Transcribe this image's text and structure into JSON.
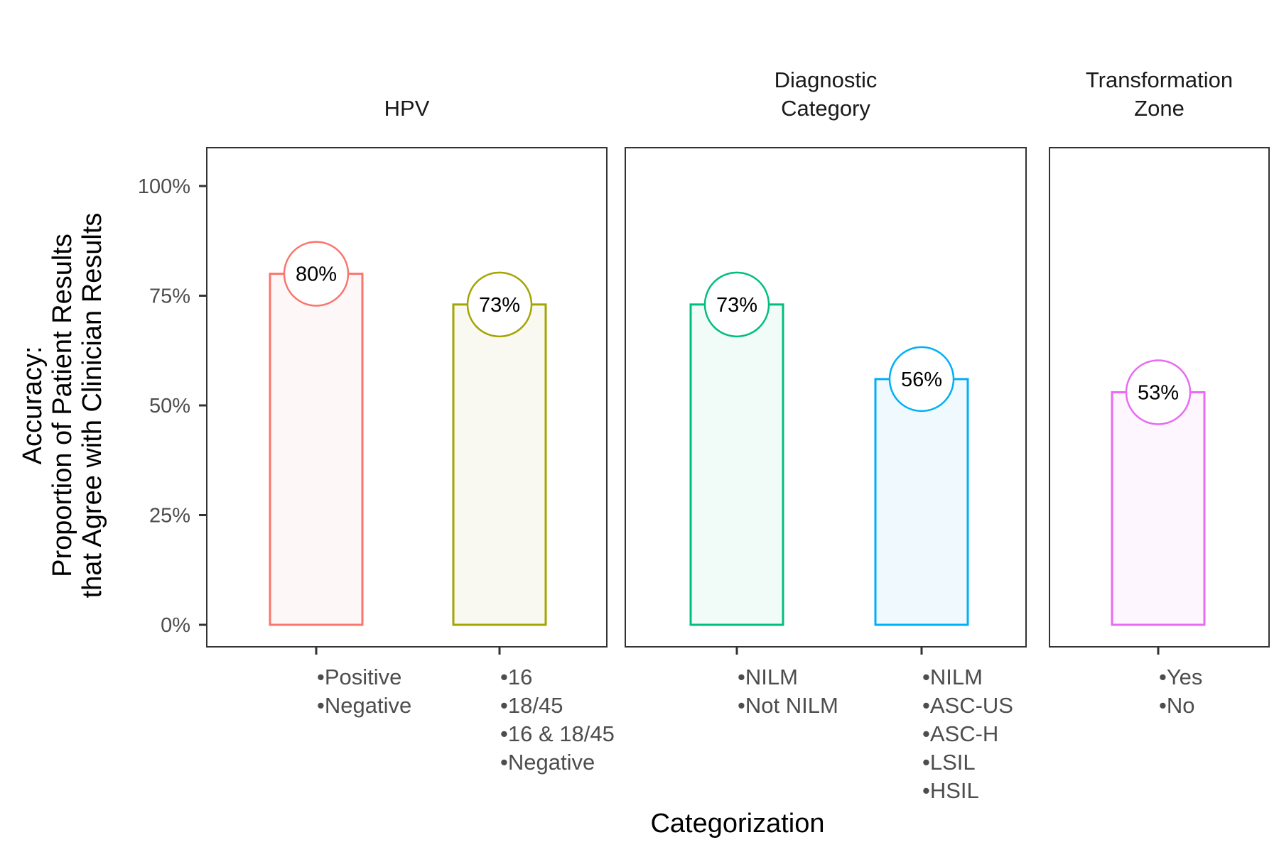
{
  "chart_data": {
    "type": "bar",
    "title": "",
    "xlabel": "Categorization",
    "ylabel_lines": [
      "Accuracy:",
      "Proportion of Patient Results",
      "that Agree with Clinician Results"
    ],
    "ylim": [
      0,
      1.08
    ],
    "yticks": [
      0,
      0.25,
      0.5,
      0.75,
      1.0
    ],
    "ytick_labels": [
      "0%",
      "25%",
      "50%",
      "75%",
      "100%"
    ],
    "grid": false,
    "legend": "none",
    "facets": [
      {
        "name": "HPV",
        "label_lines": [
          "HPV"
        ],
        "bars": [
          {
            "category_lines": [
              "•Positive",
              "•Negative"
            ],
            "value": 0.8,
            "label": "80%",
            "color": "#F8766D",
            "fill": "#FEF7F7"
          },
          {
            "category_lines": [
              "•16",
              "•18/45",
              "•16 & 18/45",
              "•Negative"
            ],
            "value": 0.73,
            "label": "73%",
            "color": "#A3A500",
            "fill": "#F9F9F1"
          }
        ]
      },
      {
        "name": "Diagnostic Category",
        "label_lines": [
          "Diagnostic",
          "Category"
        ],
        "bars": [
          {
            "category_lines": [
              "•NILM",
              "•Not NILM"
            ],
            "value": 0.73,
            "label": "73%",
            "color": "#00BF7D",
            "fill": "#F1FBF7"
          },
          {
            "category_lines": [
              "•NILM",
              "•ASC-US",
              "•ASC-H",
              "•LSIL",
              "•HSIL"
            ],
            "value": 0.56,
            "label": "56%",
            "color": "#00B0F6",
            "fill": "#F0F9FE"
          }
        ]
      },
      {
        "name": "Transformation Zone",
        "label_lines": [
          "Transformation",
          "Zone"
        ],
        "bars": [
          {
            "category_lines": [
              "•Yes",
              "•No"
            ],
            "value": 0.53,
            "label": "53%",
            "color": "#E76BF3",
            "fill": "#FDF6FE"
          }
        ]
      }
    ]
  }
}
